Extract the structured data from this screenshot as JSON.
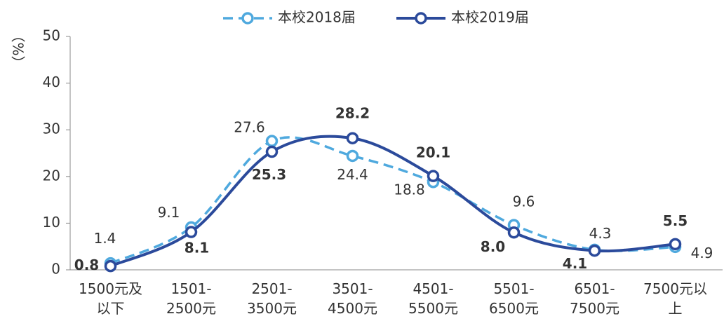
{
  "chart_data": {
    "type": "line",
    "y_label": "（%）",
    "categories": [
      "1500元及以下",
      "1501-2500元",
      "2501-3500元",
      "3501-4500元",
      "4501-5500元",
      "5501-6500元",
      "6501-7500元",
      "7500元以上"
    ],
    "series": [
      {
        "name": "本校2018届",
        "color": "#4fa9de",
        "dashed": true,
        "values": [
          1.4,
          9.1,
          27.6,
          24.4,
          18.8,
          9.6,
          4.3,
          4.9
        ]
      },
      {
        "name": "本校2019届",
        "color": "#2b4a9b",
        "dashed": false,
        "values": [
          0.8,
          8.1,
          25.3,
          28.2,
          20.1,
          8.0,
          4.1,
          5.5
        ],
        "value_labels": [
          "0.8",
          "8.1",
          "25.3",
          "28.2",
          "20.1",
          "8.0",
          "4.1",
          "5.5"
        ]
      }
    ],
    "ylim": [
      0,
      50
    ],
    "yticks": [
      0,
      10,
      20,
      30,
      40,
      50
    ],
    "smooth": true
  }
}
